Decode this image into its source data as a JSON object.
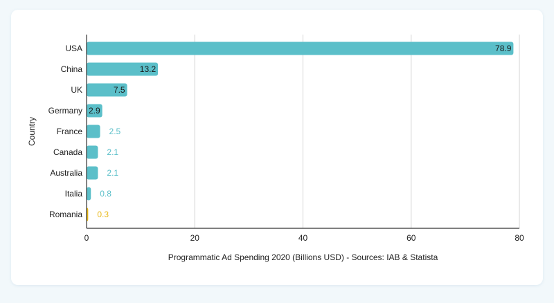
{
  "chart_data": {
    "type": "bar",
    "orientation": "horizontal",
    "categories": [
      "USA",
      "China",
      "UK",
      "Germany",
      "France",
      "Canada",
      "Australia",
      "Italia",
      "Romania"
    ],
    "values": [
      78.9,
      13.2,
      7.5,
      2.9,
      2.5,
      2.1,
      2.1,
      0.8,
      0.3
    ],
    "xlabel": "Programmatic Ad Spending 2020 (Billions USD) - Sources: IAB & Statista",
    "ylabel": "Country",
    "xlim": [
      0,
      80
    ],
    "xticks": [
      "0",
      "20",
      "40",
      "60",
      "80"
    ],
    "grid": "vertical",
    "bar_color": "#5bbfc9",
    "highlight_category": "Romania",
    "highlight_color": "#e8b713"
  }
}
